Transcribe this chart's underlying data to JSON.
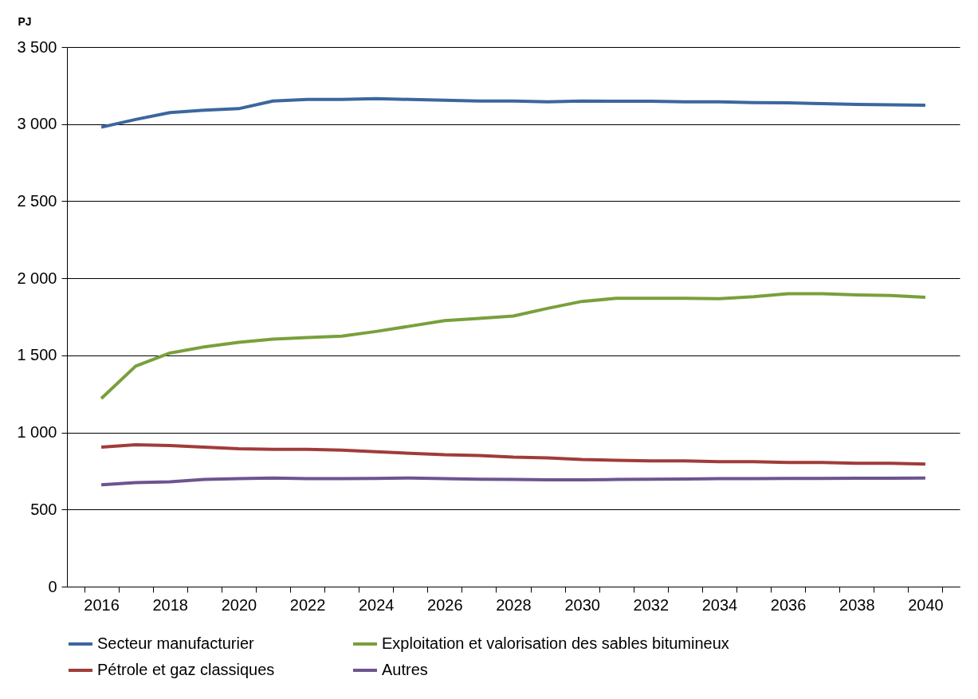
{
  "chart_data": {
    "type": "line",
    "ylabel": "PJ",
    "categories": [
      "2016",
      null,
      "2018",
      null,
      "2020",
      null,
      "2022",
      null,
      "2024",
      null,
      "2026",
      null,
      "2028",
      null,
      "2030",
      null,
      "2032",
      null,
      "2034",
      null,
      "2036",
      null,
      "2038",
      null,
      "2040"
    ],
    "series": [
      {
        "name": "Secteur manufacturier",
        "color": "#3b679e",
        "values": [
          2980,
          3030,
          3075,
          3090,
          3100,
          3150,
          3160,
          3160,
          3165,
          3160,
          3155,
          3150,
          3150,
          3145,
          3150,
          3148,
          3148,
          3145,
          3145,
          3140,
          3138,
          3133,
          3128,
          3125,
          3123
        ]
      },
      {
        "name": "Exploitation et valorisation des sables bitumineux",
        "color": "#78a03c",
        "values": [
          1220,
          1430,
          1515,
          1555,
          1585,
          1605,
          1615,
          1625,
          1655,
          1690,
          1725,
          1740,
          1755,
          1805,
          1850,
          1870,
          1870,
          1870,
          1868,
          1880,
          1900,
          1900,
          1892,
          1888,
          1877
        ]
      },
      {
        "name": "Pétrole et gaz classiques",
        "color": "#a03c3a",
        "values": [
          905,
          920,
          915,
          905,
          895,
          890,
          890,
          885,
          875,
          865,
          855,
          850,
          840,
          835,
          825,
          820,
          815,
          815,
          810,
          810,
          805,
          805,
          800,
          800,
          795
        ]
      },
      {
        "name": "Autres",
        "color": "#6d5490",
        "values": [
          660,
          675,
          680,
          695,
          700,
          705,
          700,
          700,
          702,
          705,
          700,
          697,
          695,
          693,
          693,
          695,
          697,
          698,
          700,
          700,
          702,
          702,
          703,
          703,
          705
        ]
      }
    ],
    "ylim": [
      0,
      3500
    ],
    "yticks": [
      0,
      500,
      {
        "value": 1000,
        "label": "1 000"
      },
      {
        "value": 1500,
        "label": "1 500"
      },
      {
        "value": 2000,
        "label": "2 000"
      },
      {
        "value": 2500,
        "label": "2 500"
      },
      {
        "value": 3000,
        "label": "3 000"
      },
      {
        "value": 3500,
        "label": "3 500"
      }
    ],
    "grid": "y",
    "legend": "bottom",
    "marker": "none",
    "line_style": "solid"
  }
}
